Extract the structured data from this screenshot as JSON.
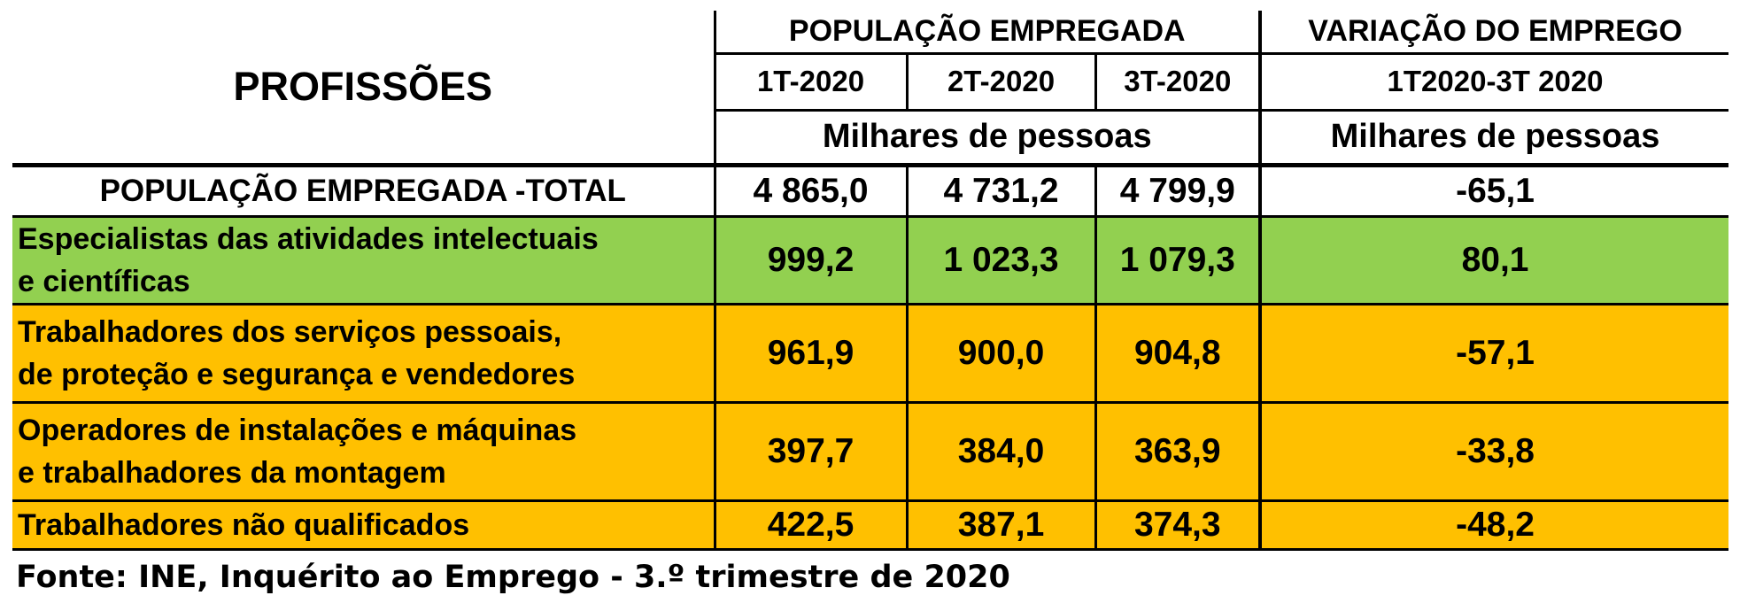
{
  "table": {
    "header": {
      "profissoes": "PROFISSÕES",
      "populacao_empregada": "POPULAÇÃO EMPREGADA",
      "variacao_emprego": "VARIAÇÃO DO EMPREGO",
      "quarters": [
        "1T-2020",
        "2T-2020",
        "3T-2020"
      ],
      "variation_period": "1T2020-3T 2020",
      "unit_population": "Milhares de pessoas",
      "unit_variation": "Milhares de pessoas"
    },
    "total_row": {
      "label": "POPULAÇÃO EMPREGADA -TOTAL",
      "q1": "4 865,0",
      "q2": "4 731,2",
      "q3": "4 799,9",
      "variation": "-65,1"
    },
    "rows": [
      {
        "label_line1": "Especialistas das atividades intelectuais",
        "label_line2": "e científicas",
        "q1": "999,2",
        "q2": "1 023,3",
        "q3": "1 079,3",
        "variation": "80,1",
        "color": "#92d050"
      },
      {
        "label_line1": "Trabalhadores dos serviços pessoais,",
        "label_line2": "de proteção e segurança e vendedores",
        "q1": "961,9",
        "q2": "900,0",
        "q3": "904,8",
        "variation": "-57,1",
        "color": "#ffc000"
      },
      {
        "label_line1": "Operadores de instalações e máquinas",
        "label_line2": "e trabalhadores da montagem",
        "q1": "397,7",
        "q2": "384,0",
        "q3": "363,9",
        "variation": "-33,8",
        "color": "#ffc000"
      },
      {
        "label_line1": "Trabalhadores não qualificados",
        "q1": "422,5",
        "q2": "387,1",
        "q3": "374,3",
        "variation": "-48,2",
        "color": "#ffc000"
      }
    ]
  },
  "source": "Fonte: INE, Inquérito ao Emprego - 3.º trimestre de 2020"
}
